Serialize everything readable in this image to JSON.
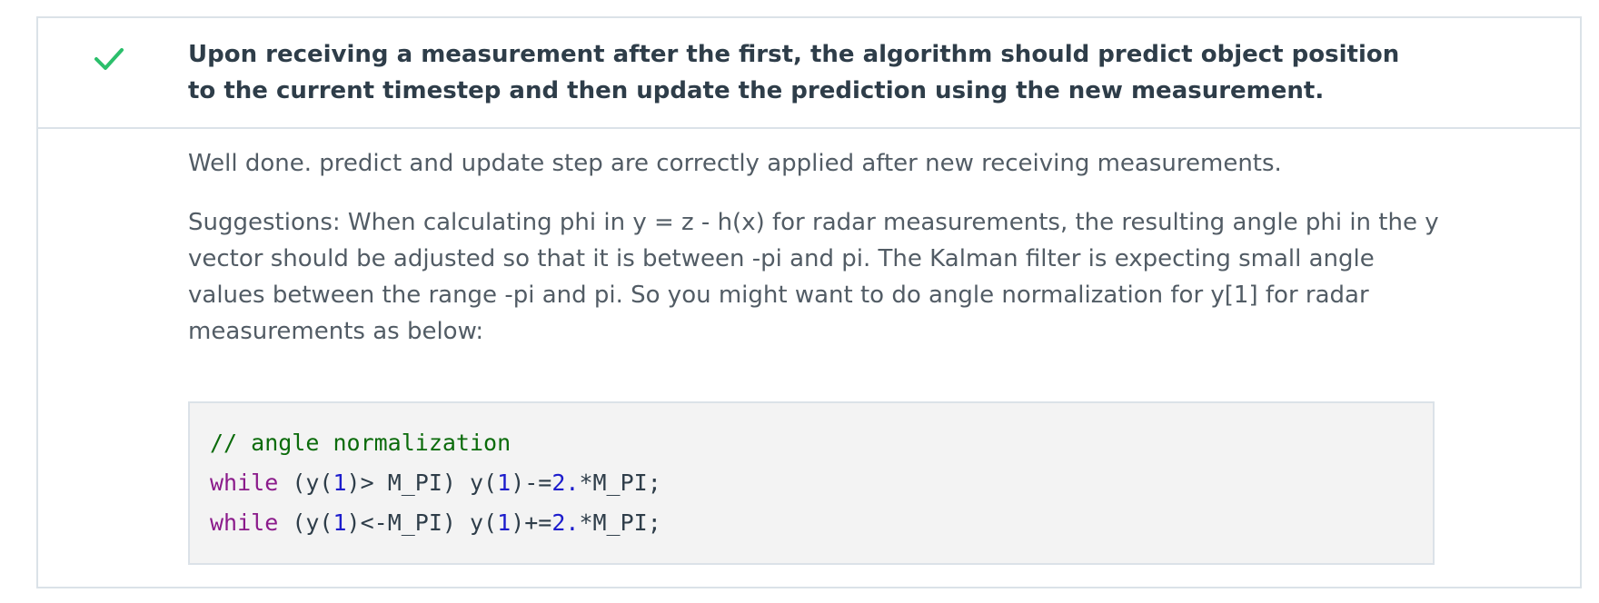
{
  "colors": {
    "check": "#2bbf6b",
    "border": "#dbe2e8",
    "code_background": "#f3f3f3",
    "comment": "#0b6b0b",
    "keyword": "#8b1b8b",
    "number": "#1c1ccc"
  },
  "criterion": {
    "status_icon": "check-icon",
    "title": "Upon receiving a measurement after the first, the algorithm should predict object position to the current timestep and then update the prediction using the new measurement."
  },
  "feedback": {
    "paragraphs": [
      "Well done. predict and update step are correctly applied after new receiving measurements.",
      "Suggestions: When calculating phi in y = z - h(x) for radar measurements, the resulting angle phi in the y vector should be adjusted so that it is between -pi and pi. The Kalman filter is expecting small angle values between the range -pi and pi. So you might want to do angle normalization for y[1] for radar measurements as below:"
    ],
    "code": {
      "comment": "// angle normalization",
      "lines": [
        [
          {
            "type": "keyword",
            "text": "while"
          },
          {
            "type": "plain",
            "text": " (y("
          },
          {
            "type": "number",
            "text": "1"
          },
          {
            "type": "plain",
            "text": ")> M_PI) y("
          },
          {
            "type": "number",
            "text": "1"
          },
          {
            "type": "plain",
            "text": ")-="
          },
          {
            "type": "number",
            "text": "2."
          },
          {
            "type": "plain",
            "text": "*M_PI;"
          }
        ],
        [
          {
            "type": "keyword",
            "text": "while"
          },
          {
            "type": "plain",
            "text": " (y("
          },
          {
            "type": "number",
            "text": "1"
          },
          {
            "type": "plain",
            "text": ")<-M_PI) y("
          },
          {
            "type": "number",
            "text": "1"
          },
          {
            "type": "plain",
            "text": ")+="
          },
          {
            "type": "number",
            "text": "2."
          },
          {
            "type": "plain",
            "text": "*M_PI;"
          }
        ]
      ]
    }
  }
}
